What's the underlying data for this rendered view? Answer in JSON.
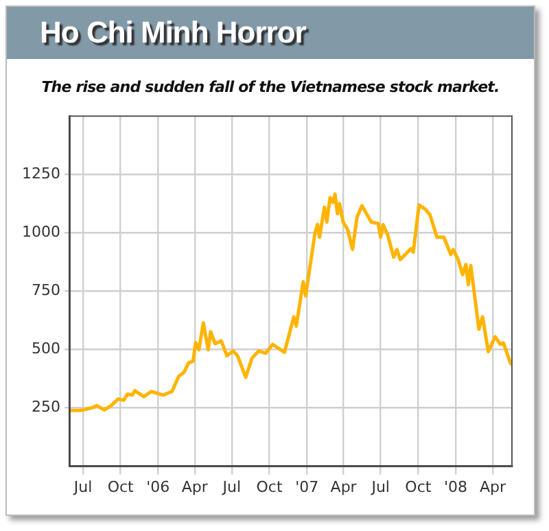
{
  "chart_data": {
    "type": "line",
    "title": "Ho Chi Minh Horror",
    "subtitle": "The rise and sudden fall of the Vietnamese stock market.",
    "x": [
      "2005-05-30",
      "2005-06-25",
      "2005-07-24",
      "2005-08-04",
      "2005-08-22",
      "2005-09-08",
      "2005-09-25",
      "2005-10-09",
      "2005-10-18",
      "2005-10-30",
      "2005-11-05",
      "2005-11-27",
      "2005-12-15",
      "2006-01-13",
      "2006-02-04",
      "2006-02-21",
      "2006-03-05",
      "2006-03-17",
      "2006-03-28",
      "2006-04-03",
      "2006-04-11",
      "2006-04-22",
      "2006-05-04",
      "2006-05-10",
      "2006-05-21",
      "2006-06-05",
      "2006-06-19",
      "2006-07-04",
      "2006-07-15",
      "2006-08-04",
      "2006-08-19",
      "2006-09-05",
      "2006-09-22",
      "2006-10-09",
      "2006-11-07",
      "2006-11-30",
      "2006-12-06",
      "2006-12-23",
      "2006-12-29",
      "2007-01-21",
      "2007-01-27",
      "2007-02-01",
      "2007-02-13",
      "2007-02-19",
      "2007-02-27",
      "2007-03-06",
      "2007-03-11",
      "2007-03-17",
      "2007-03-22",
      "2007-03-31",
      "2007-04-11",
      "2007-04-23",
      "2007-05-04",
      "2007-05-16",
      "2007-06-08",
      "2007-06-25",
      "2007-07-01",
      "2007-07-07",
      "2007-07-18",
      "2007-08-02",
      "2007-08-10",
      "2007-08-18",
      "2007-09-13",
      "2007-09-19",
      "2007-10-03",
      "2007-10-18",
      "2007-10-30",
      "2007-11-16",
      "2007-12-03",
      "2007-12-20",
      "2007-12-26",
      "2008-01-07",
      "2008-01-18",
      "2008-01-26",
      "2008-02-01",
      "2008-02-07",
      "2008-02-27",
      "2008-03-07",
      "2008-03-21",
      "2008-04-07",
      "2008-04-19",
      "2008-04-27",
      "2008-05-15"
    ],
    "series": [
      {
        "color": "#ffb400",
        "values": [
          239,
          239,
          251,
          260,
          241,
          260,
          288,
          283,
          309,
          305,
          324,
          298,
          320,
          305,
          320,
          386,
          401,
          443,
          450,
          529,
          499,
          614,
          499,
          576,
          525,
          537,
          473,
          494,
          473,
          381,
          462,
          494,
          484,
          522,
          488,
          640,
          600,
          790,
          730,
          1000,
          1036,
          981,
          1110,
          1046,
          1151,
          1130,
          1166,
          1082,
          1125,
          1046,
          1014,
          929,
          1067,
          1116,
          1046,
          1040,
          981,
          1035,
          992,
          896,
          928,
          885,
          932,
          917,
          1119,
          1102,
          1077,
          981,
          981,
          907,
          928,
          885,
          821,
          864,
          778,
          860,
          587,
          640,
          491,
          555,
          523,
          528,
          439
        ]
      }
    ],
    "xlim": [
      "2005-05-30",
      "2008-05-18"
    ],
    "xticks": [
      {
        "value": "2005-07-01",
        "label": "Jul"
      },
      {
        "value": "2005-10-01",
        "label": "Oct"
      },
      {
        "value": "2006-01-01",
        "label": "'06"
      },
      {
        "value": "2006-04-01",
        "label": "Apr"
      },
      {
        "value": "2006-07-01",
        "label": "Jul"
      },
      {
        "value": "2006-10-01",
        "label": "Oct"
      },
      {
        "value": "2007-01-01",
        "label": "'07"
      },
      {
        "value": "2007-04-01",
        "label": "Apr"
      },
      {
        "value": "2007-07-01",
        "label": "Jul"
      },
      {
        "value": "2007-10-01",
        "label": "Oct"
      },
      {
        "value": "2008-01-01",
        "label": "'08"
      },
      {
        "value": "2008-04-01",
        "label": "Apr"
      }
    ],
    "ylim": [
      0,
      1500
    ],
    "yticks": [
      250,
      500,
      750,
      1000,
      1250
    ],
    "grid": true,
    "legend": false,
    "marker": "none",
    "line_style": "solid"
  }
}
